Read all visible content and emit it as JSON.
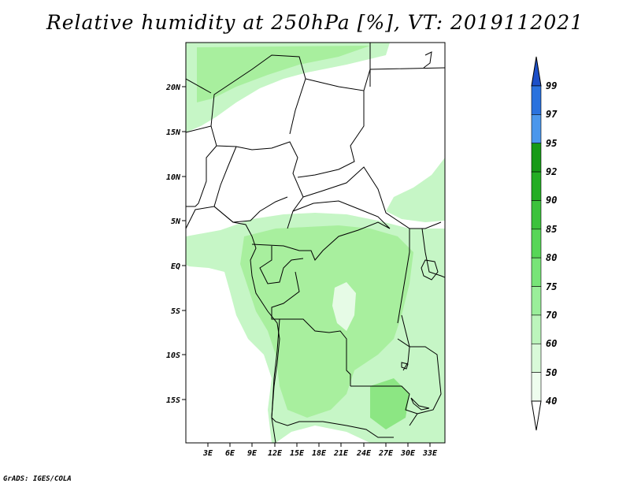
{
  "title": "Relative humidity at 250hPa [%], VT: 2019112021",
  "credit": "GrADS: IGES/COLA",
  "map": {
    "lat_labels": [
      "20N",
      "15N",
      "10N",
      "5N",
      "EQ",
      "5S",
      "10S",
      "15S"
    ],
    "lon_labels": [
      "3E",
      "6E",
      "9E",
      "12E",
      "15E",
      "18E",
      "21E",
      "24E",
      "27E",
      "30E",
      "33E"
    ]
  },
  "colorbar": {
    "labels": [
      "99",
      "97",
      "95",
      "92",
      "90",
      "85",
      "80",
      "75",
      "70",
      "60",
      "50",
      "40"
    ],
    "colors": [
      "#1c4fc8",
      "#2a72de",
      "#4b97ec",
      "#179a17",
      "#24ad24",
      "#3cc23c",
      "#57d657",
      "#78e478",
      "#9aee9a",
      "#bcf5bc",
      "#d9fad9",
      "#eefdee"
    ]
  },
  "colors": {
    "humid_light": "#c6f6c6",
    "humid_mid": "#a8ef9e",
    "humid_dark": "#8ce683"
  }
}
